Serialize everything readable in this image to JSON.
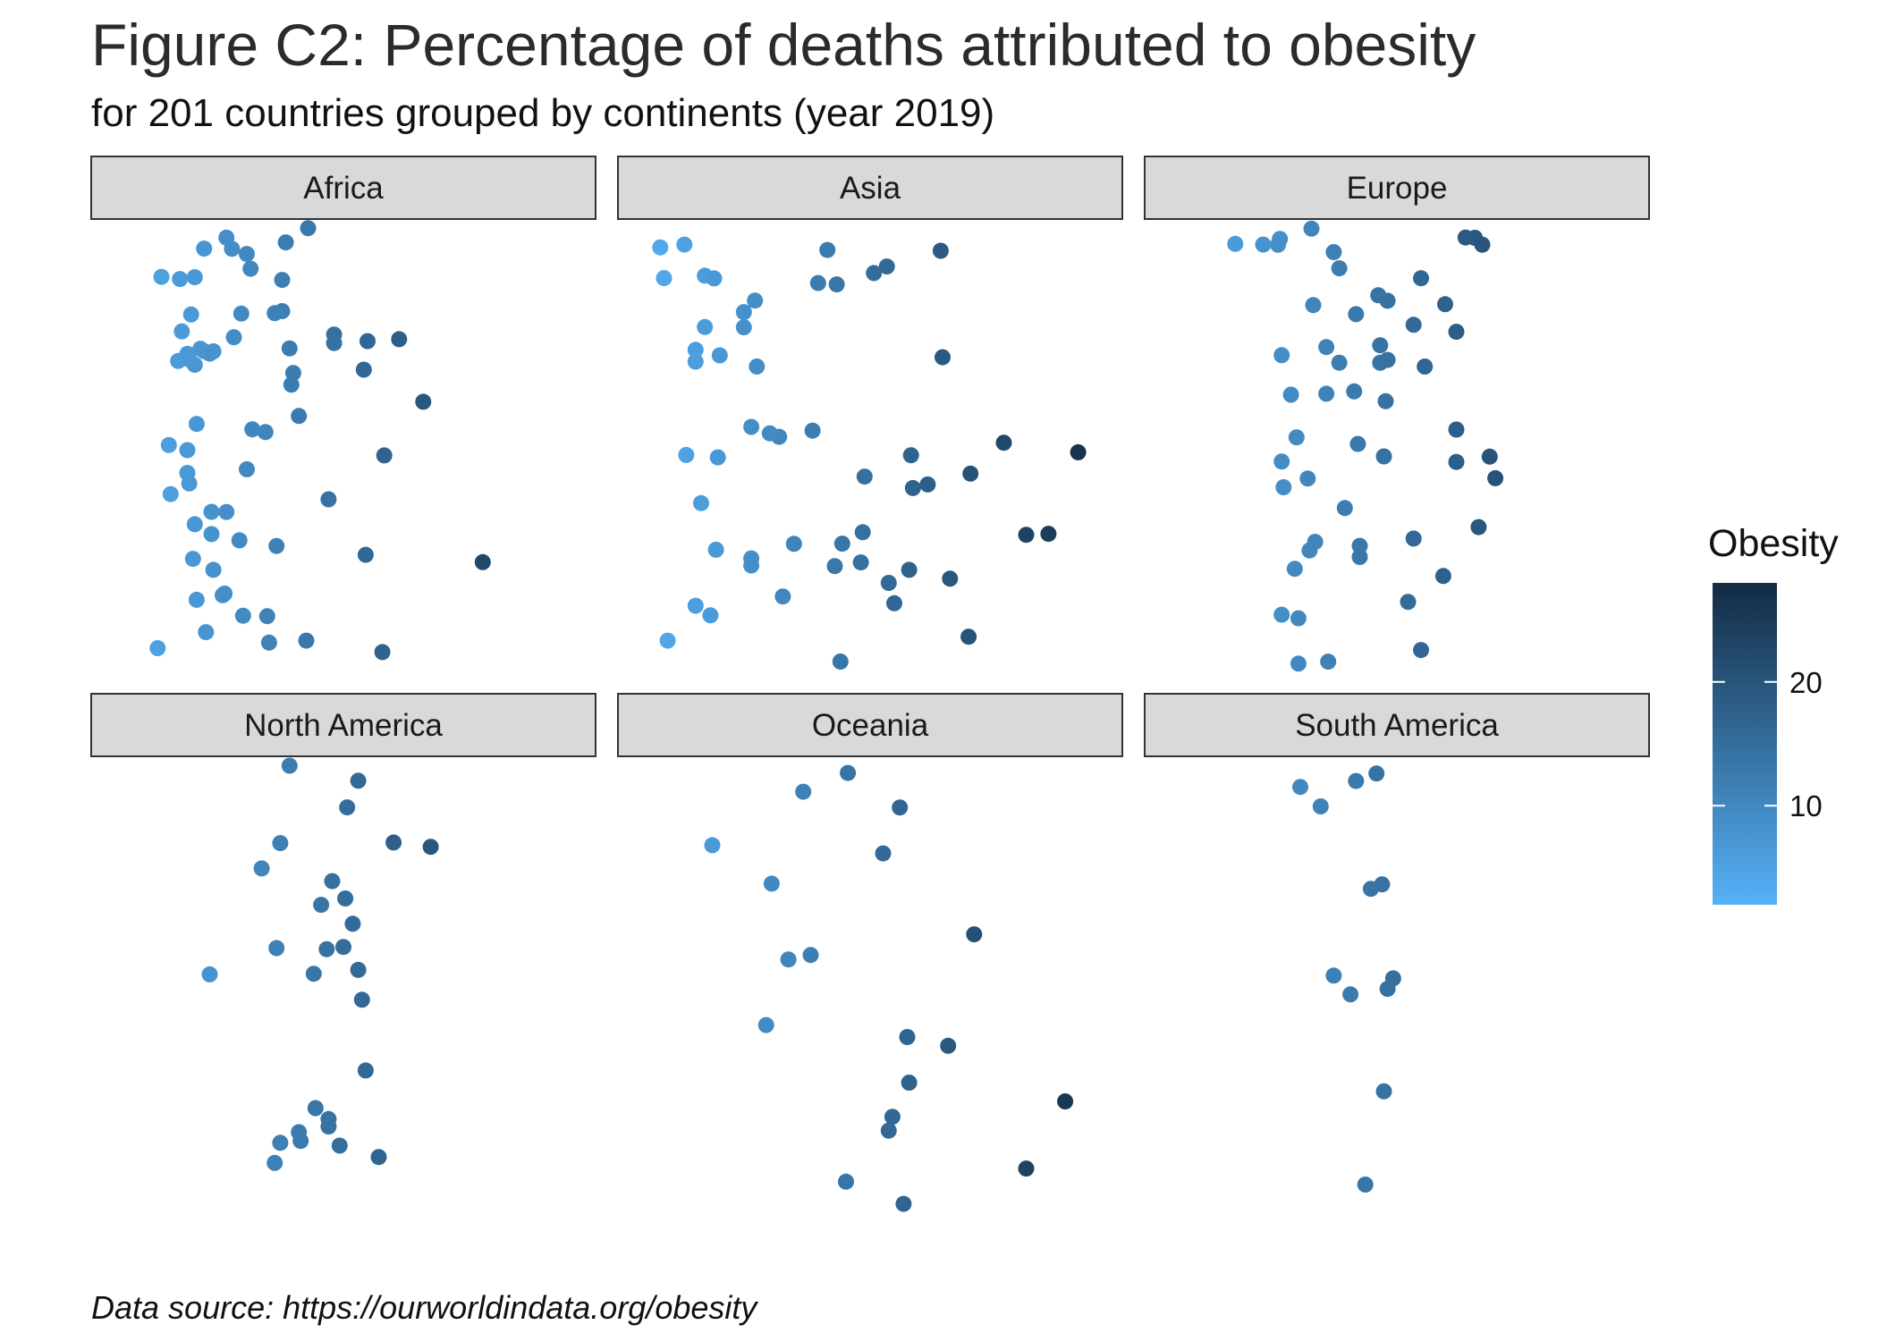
{
  "title": "Figure C2: Percentage of deaths attributed to obesity",
  "subtitle": "for 201 countries grouped by continents (year 2019)",
  "caption": "Data source: https://ourworldindata.org/obesity",
  "chart_data": {
    "type": "scatter",
    "facet_by": "continent",
    "facet_layout": "3 columns x 2 rows",
    "axes_visible": false,
    "grid": false,
    "legend": {
      "title": "Obesity",
      "type": "continuous colorbar",
      "placement": "right",
      "range": [
        2,
        28
      ],
      "ticks": [
        10,
        20
      ],
      "color_low": "#56b1f7",
      "color_high": "#132b43"
    },
    "points_are_jittered": true,
    "panels": [
      {
        "name": "Africa",
        "values": [
          7.6,
          7.0,
          8.5,
          7.8,
          6.6,
          9.4,
          7.3,
          5.6,
          9.1,
          12.3,
          11.0,
          10.8,
          9.8,
          7.0,
          7.5,
          8.7,
          14.5,
          14.5,
          16.3,
          16.2,
          8.0,
          6.9,
          7.5,
          7.1,
          7.1,
          10.1,
          7.9,
          11.7,
          11.4,
          17.1,
          17.2,
          18.0,
          22.5,
          19.3,
          7.9,
          6.3,
          5.7,
          6.6,
          8.0,
          6.7,
          9.6,
          11.9,
          11.7,
          12.6,
          11.3,
          13.0,
          12.1,
          13.1,
          6.2,
          8.6,
          5.2,
          5.0,
          7.0,
          6.1,
          6.6,
          6.7,
          6.8,
          9.8,
          12.2,
          9.0,
          8.7,
          10.0,
          9.5,
          10.9,
          14.2,
          16.1
        ]
      },
      {
        "name": "Asia",
        "values": [
          5.6,
          6.1,
          3.9,
          6.1,
          8.6,
          8.2,
          8.2,
          8.8,
          13.2,
          18.8,
          16.3,
          20.3,
          17.3,
          18.1,
          26.2,
          23.4,
          15.9,
          10.9,
          3.7,
          6.4,
          8.6,
          10.3,
          17.1,
          20.4,
          5.9,
          5.6,
          4.1,
          5.0,
          8.9,
          13.1,
          11.9,
          16.0,
          15.2,
          17.2,
          19.3,
          24.6,
          10.1,
          14.6,
          13.4,
          22.2,
          6.6,
          6.7,
          6.8,
          6.9,
          12.7,
          13.5,
          5.6,
          5.1,
          8.6,
          9.6,
          12.2,
          14.5,
          14.7,
          18.9
        ]
      },
      {
        "name": "Europe",
        "values": [
          9.6,
          10.5,
          10.2,
          11.2,
          11.6,
          12.8,
          13.0,
          14.1,
          17.5,
          18.2,
          19.2,
          20.0,
          8.6,
          7.8,
          8.8,
          6.3,
          8.9,
          9.7,
          12.9,
          14.4,
          14.5,
          18.2,
          11.9,
          10.3,
          11.3,
          10.4,
          10.6,
          11.9,
          12.7,
          13.0,
          14.3,
          15.9,
          16.3,
          11.2,
          8.8,
          9.5,
          8.8,
          9.3,
          14.1,
          14.5,
          17.6,
          18.7,
          19.4,
          19.6,
          16.5,
          16.3,
          15.9,
          15.6,
          8.7,
          9.7,
          12.2,
          14.0,
          18.2,
          20.3
        ]
      },
      {
        "name": "North America",
        "values": [
          14.2,
          17.7,
          19.7,
          13.4,
          13.8,
          14.4,
          15.8,
          16.0,
          11.6,
          15.5,
          16.2,
          16.9,
          7.8,
          10.6,
          11.4,
          12.7,
          15.2,
          12.6,
          13.5,
          14.8,
          12.1,
          11.6,
          11.3,
          14.2,
          15.1,
          14.1,
          15.0,
          15.8
        ]
      },
      {
        "name": "Oceania",
        "values": [
          11.4,
          13.8,
          16.2,
          16.8,
          10.6,
          15.7,
          6.5,
          9.4,
          16.6,
          17.0,
          19.2,
          20.6,
          16.0,
          11.8,
          13.7,
          17.1,
          25.5,
          23.4,
          9.7
        ]
      },
      {
        "name": "South America",
        "values": [
          9.8,
          14.8,
          10.9,
          14.2,
          13.3,
          14.5,
          14.3,
          11.6,
          12.8,
          13.9,
          12.5,
          13.6
        ]
      }
    ]
  }
}
